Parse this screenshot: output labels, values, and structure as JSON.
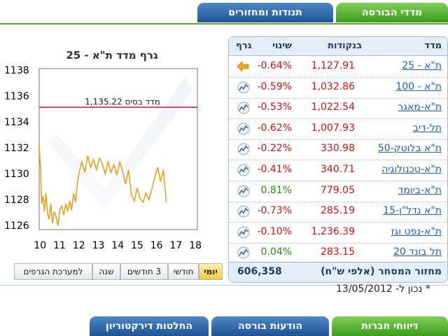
{
  "top_tabs": {
    "active": "מדדי הבורסה",
    "inactive": "תנודות ומחזורים"
  },
  "table": {
    "headers": {
      "index": "מדד",
      "points": "בנקודות",
      "change": "שינוי",
      "graph": "גרף"
    },
    "rows": [
      {
        "name": "ת\"א - 25",
        "points": "1,127.91",
        "change": "-0.64%",
        "dir": "down",
        "icon": "arrow-left-icon"
      },
      {
        "name": "ת\"א - 100",
        "points": "1,032.86",
        "change": "-0.59%",
        "dir": "down",
        "icon": "chart-icon"
      },
      {
        "name": "ת\"א-מאגר",
        "points": "1,022.54",
        "change": "-0.53%",
        "dir": "down",
        "icon": "chart-icon"
      },
      {
        "name": "תל-דיב",
        "points": "1,007.93",
        "change": "-0.62%",
        "dir": "down",
        "icon": "chart-icon"
      },
      {
        "name": "ת\"א בלוטק-50",
        "points": "330.98",
        "change": "-0.22%",
        "dir": "down",
        "icon": "chart-icon"
      },
      {
        "name": "ת\"א-טכנולוגיה",
        "points": "340.71",
        "change": "-0.41%",
        "dir": "down",
        "icon": "chart-icon"
      },
      {
        "name": "ת\"א-ביומד",
        "points": "779.05",
        "change": "0.81%",
        "dir": "up",
        "icon": "chart-icon"
      },
      {
        "name": "ת\"א נדל\"ן-15",
        "points": "285.19",
        "change": "-0.73%",
        "dir": "down",
        "icon": "chart-icon"
      },
      {
        "name": "ת\"א-נפט וגז",
        "points": "1,236.39",
        "change": "-0.10%",
        "dir": "down",
        "icon": "chart-icon"
      },
      {
        "name": "תל בונד 20",
        "points": "283.15",
        "change": "0.04%",
        "dir": "up",
        "icon": "chart-icon"
      }
    ],
    "turnover_label": "מחזור המסחר (אלפי ש\"ח)",
    "turnover_value": "606,358"
  },
  "as_of": "* נכון ל- 13/05/2012",
  "chart_buttons": [
    "יומי",
    "חודשי",
    "3 חודשים",
    "שנה",
    "למערכת הגרפים"
  ],
  "bottom_tabs": [
    "דיווחי חברות",
    "הודעות בורסה",
    "החלטות דירקטוריון"
  ],
  "colors": {
    "up": "#2b8a14",
    "down": "#cc1111",
    "line": "#e8a020",
    "base": "#c8102e"
  },
  "chart_data": {
    "type": "line",
    "title": "גרף מדד ת\"א - 25",
    "x_ticks": [
      "10",
      "11",
      "12",
      "13",
      "14",
      "15",
      "16",
      "17",
      "18"
    ],
    "y_ticks": [
      "1138",
      "1136",
      "1134",
      "1132",
      "1130",
      "1128",
      "1126"
    ],
    "ylim": [
      1125.8,
      1138.2
    ],
    "xlim": [
      9.95,
      18.1
    ],
    "base_line": {
      "label": "מדד בסיס 1,135.22",
      "value": 1135.22
    },
    "series": [
      {
        "x": [
          9.95,
          10.02,
          10.08,
          10.15,
          10.22,
          10.3,
          10.38,
          10.46,
          10.55,
          10.63,
          10.72,
          10.82,
          10.92,
          11.02,
          11.12,
          11.22,
          11.32,
          11.42,
          11.52,
          11.62,
          11.72,
          11.82,
          11.92,
          12.02,
          12.15,
          12.3,
          12.45,
          12.6,
          12.75,
          12.9,
          13.05,
          13.2,
          13.35,
          13.5,
          13.65,
          13.8,
          13.95,
          14.1,
          14.25,
          14.4,
          14.55,
          14.7,
          14.85,
          15.0,
          15.15,
          15.3,
          15.45,
          15.6,
          15.75,
          15.9,
          16.05,
          16.2,
          16.35,
          16.5
        ],
        "y": [
          1132.3,
          1130.5,
          1127.8,
          1128.4,
          1127.2,
          1128.6,
          1127.0,
          1126.6,
          1127.8,
          1126.3,
          1127.2,
          1126.8,
          1126.1,
          1127.4,
          1127.6,
          1126.9,
          1127.8,
          1127.2,
          1128.0,
          1127.3,
          1128.6,
          1127.9,
          1129.4,
          1130.3,
          1131.0,
          1130.2,
          1131.5,
          1130.6,
          1131.2,
          1130.4,
          1131.3,
          1130.9,
          1130.1,
          1131.0,
          1130.2,
          1130.8,
          1130.0,
          1131.0,
          1130.3,
          1129.3,
          1130.4,
          1128.5,
          1128.0,
          1129.0,
          1128.2,
          1127.9,
          1128.6,
          1128.1,
          1128.9,
          1129.8,
          1130.6,
          1129.5,
          1130.4,
          1127.9
        ]
      }
    ]
  }
}
